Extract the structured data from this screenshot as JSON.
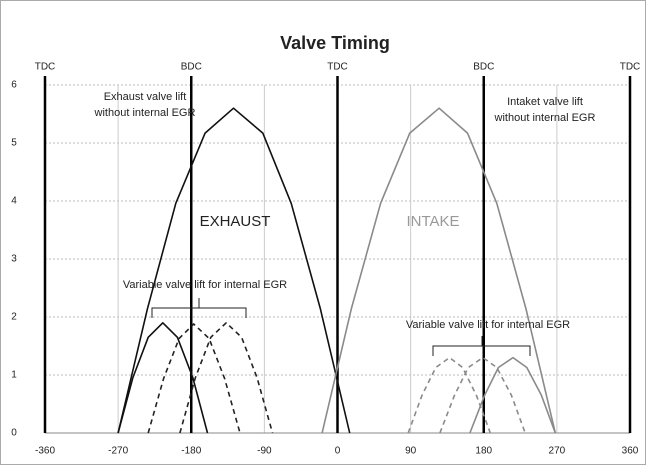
{
  "chart_data": {
    "type": "line",
    "title": "Valve Timing",
    "xlim": [
      -360,
      360
    ],
    "xticks": [
      -360,
      -270,
      -180,
      -90,
      0,
      90,
      180,
      270,
      360
    ],
    "ylim": [
      0,
      6
    ],
    "yticks": [
      0,
      1,
      2,
      3,
      4,
      5,
      6
    ],
    "grid": true,
    "markers": [
      {
        "x": -360,
        "label": "TDC"
      },
      {
        "x": -180,
        "label": "BDC"
      },
      {
        "x": 0,
        "label": "TDC"
      },
      {
        "x": 180,
        "label": "BDC"
      },
      {
        "x": 360,
        "label": "TDC"
      }
    ],
    "series": [
      {
        "color": "#111111",
        "dash": false,
        "x": [
          -270,
          -234,
          -199,
          -163,
          -128,
          -92,
          -57,
          -21,
          15
        ],
        "values": [
          0,
          2.14,
          3.96,
          5.17,
          5.6,
          5.17,
          3.96,
          2.14,
          0
        ]
      },
      {
        "color": "#8a8a8a",
        "dash": false,
        "x": [
          -19,
          17,
          53,
          89,
          125,
          160,
          196,
          232,
          268
        ],
        "values": [
          0,
          2.14,
          3.96,
          5.17,
          5.6,
          5.17,
          3.96,
          2.14,
          0
        ]
      },
      {
        "color": "#111111",
        "dash": false,
        "x": [
          -270,
          -252,
          -233,
          -215,
          -197,
          -178,
          -160
        ],
        "values": [
          0,
          0.95,
          1.65,
          1.9,
          1.65,
          0.95,
          0
        ]
      },
      {
        "color": "#222222",
        "dash": true,
        "x": [
          -233,
          -214,
          -195,
          -177,
          -158,
          -139,
          -120
        ],
        "values": [
          0,
          0.94,
          1.63,
          1.88,
          1.63,
          0.94,
          0
        ]
      },
      {
        "color": "#222222",
        "dash": true,
        "x": [
          -194,
          -175,
          -156,
          -137,
          -118,
          -99,
          -80
        ],
        "values": [
          0,
          0.95,
          1.65,
          1.9,
          1.65,
          0.95,
          0
        ]
      },
      {
        "color": "#8a8a8a",
        "dash": true,
        "x": [
          87,
          104,
          121,
          138,
          154,
          171,
          188
        ],
        "values": [
          0,
          0.65,
          1.13,
          1.3,
          1.13,
          0.65,
          0
        ]
      },
      {
        "color": "#8a8a8a",
        "dash": true,
        "x": [
          126,
          144,
          161,
          179,
          196,
          214,
          231
        ],
        "values": [
          0,
          0.65,
          1.13,
          1.3,
          1.13,
          0.65,
          0
        ]
      },
      {
        "color": "#8a8a8a",
        "dash": false,
        "x": [
          163,
          181,
          198,
          216,
          233,
          251,
          268
        ],
        "values": [
          0,
          0.65,
          1.13,
          1.3,
          1.13,
          0.65,
          0
        ]
      }
    ],
    "annotations": [
      [
        "Exhaust valve lift",
        "without internal EGR"
      ],
      [
        "Intaket valve lift",
        "without internal EGR"
      ],
      "EXHAUST",
      "INTAKE",
      "Variable valve lift for internal EGR",
      "Variable valve lift for internal EGR"
    ]
  }
}
